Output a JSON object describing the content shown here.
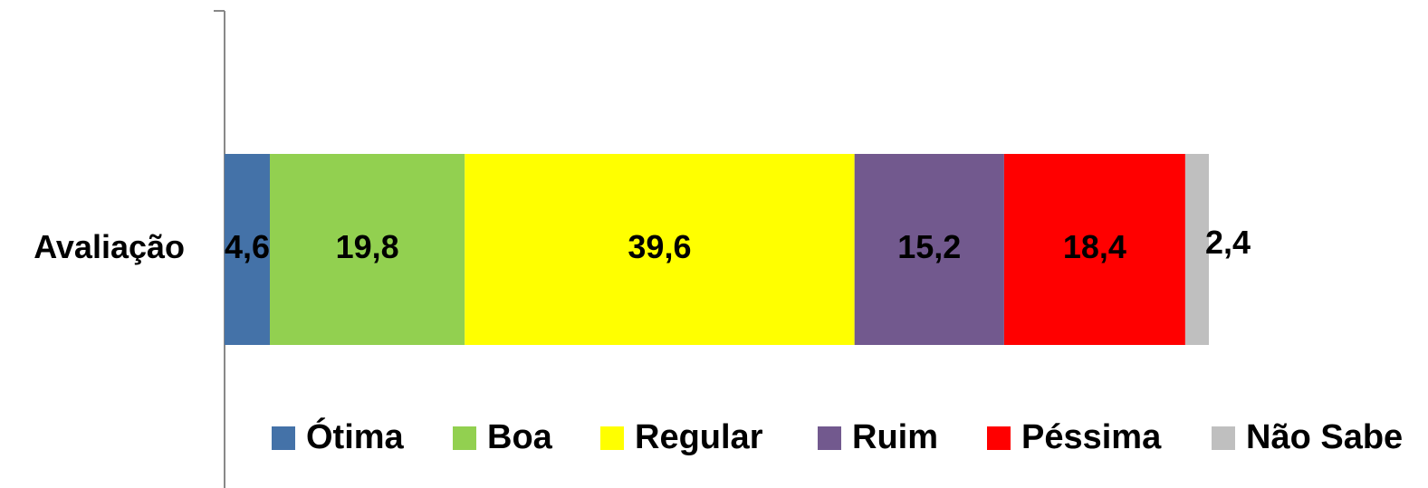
{
  "chart_data": {
    "type": "stacked_barh",
    "categories": [
      "Avaliação"
    ],
    "xlim": [
      0,
      100
    ],
    "legend": "bottom",
    "series": [
      {
        "name": "Ótima",
        "color": "#4472a8",
        "values": [
          4.6
        ],
        "value_labels": [
          "4,6"
        ]
      },
      {
        "name": "Boa",
        "color": "#92d050",
        "values": [
          19.8
        ],
        "value_labels": [
          "19,8"
        ]
      },
      {
        "name": "Regular",
        "color": "#ffff00",
        "values": [
          39.6
        ],
        "value_labels": [
          "39,6"
        ]
      },
      {
        "name": "Ruim",
        "color": "#72598e",
        "values": [
          15.2
        ],
        "value_labels": [
          "15,2"
        ]
      },
      {
        "name": "Péssima",
        "color": "#ff0000",
        "values": [
          18.4
        ],
        "value_labels": [
          "18,4"
        ]
      },
      {
        "name": "Não Sabe",
        "color": "#bfbfbf",
        "values": [
          2.4
        ],
        "value_labels": [
          "2,4"
        ]
      }
    ]
  }
}
